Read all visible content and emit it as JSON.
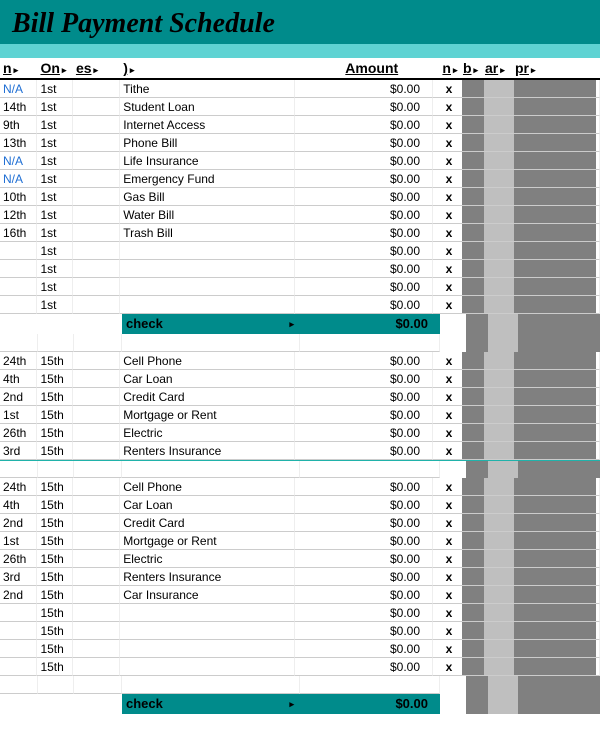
{
  "title": "Bill Payment Schedule",
  "headers": {
    "n": "n",
    "on": "On",
    "es": "es",
    "paren": ")",
    "amount": "Amount",
    "n2": "n",
    "b": "b",
    "ar": "ar",
    "pr": "pr"
  },
  "colors": {
    "title_bg": "#008b8b",
    "sub_bg": "#5fd3d3",
    "check_bg": "#008b8b",
    "side_dark": "#808080",
    "side_light": "#bfbfbf",
    "na_color": "#1f6fd4"
  },
  "section1": [
    {
      "n": "N/A",
      "na": true,
      "on": "1st",
      "desc": "Tithe",
      "amt": "$0.00",
      "x": "x"
    },
    {
      "n": "14th",
      "on": "1st",
      "desc": "Student Loan",
      "amt": "$0.00",
      "x": "x"
    },
    {
      "n": "9th",
      "on": "1st",
      "desc": "Internet Access",
      "amt": "$0.00",
      "x": "x"
    },
    {
      "n": "13th",
      "on": "1st",
      "desc": "Phone Bill",
      "amt": "$0.00",
      "x": "x"
    },
    {
      "n": "N/A",
      "na": true,
      "on": "1st",
      "desc": "Life Insurance",
      "amt": "$0.00",
      "x": "x"
    },
    {
      "n": "N/A",
      "na": true,
      "on": "1st",
      "desc": "Emergency Fund",
      "amt": "$0.00",
      "x": "x"
    },
    {
      "n": "10th",
      "on": "1st",
      "desc": "Gas Bill",
      "amt": "$0.00",
      "x": "x"
    },
    {
      "n": "12th",
      "on": "1st",
      "desc": "Water Bill",
      "amt": "$0.00",
      "x": "x"
    },
    {
      "n": "16th",
      "on": "1st",
      "desc": "Trash Bill",
      "amt": "$0.00",
      "x": "x"
    },
    {
      "n": "",
      "on": "1st",
      "desc": "",
      "amt": "$0.00",
      "x": "x"
    },
    {
      "n": "",
      "on": "1st",
      "desc": "",
      "amt": "$0.00",
      "x": "x"
    },
    {
      "n": "",
      "on": "1st",
      "desc": "",
      "amt": "$0.00",
      "x": "x"
    },
    {
      "n": "",
      "on": "1st",
      "desc": "",
      "amt": "$0.00",
      "x": "x"
    }
  ],
  "check1": {
    "label": "check",
    "amt": "$0.00"
  },
  "section2": [
    {
      "n": "24th",
      "on": "15th",
      "desc": "Cell Phone",
      "amt": "$0.00",
      "x": "x"
    },
    {
      "n": "4th",
      "on": "15th",
      "desc": "Car Loan",
      "amt": "$0.00",
      "x": "x"
    },
    {
      "n": "2nd",
      "on": "15th",
      "desc": "Credit Card",
      "amt": "$0.00",
      "x": "x"
    },
    {
      "n": "1st",
      "on": "15th",
      "desc": "Mortgage or Rent",
      "amt": "$0.00",
      "x": "x"
    },
    {
      "n": "26th",
      "on": "15th",
      "desc": "Electric",
      "amt": "$0.00",
      "x": "x"
    },
    {
      "n": "3rd",
      "on": "15th",
      "desc": "Renters Insurance",
      "amt": "$0.00",
      "x": "x"
    }
  ],
  "section3": [
    {
      "n": "24th",
      "on": "15th",
      "desc": "Cell Phone",
      "amt": "$0.00",
      "x": "x"
    },
    {
      "n": "4th",
      "on": "15th",
      "desc": "Car Loan",
      "amt": "$0.00",
      "x": "x"
    },
    {
      "n": "2nd",
      "on": "15th",
      "desc": "Credit Card",
      "amt": "$0.00",
      "x": "x"
    },
    {
      "n": "1st",
      "on": "15th",
      "desc": "Mortgage or Rent",
      "amt": "$0.00",
      "x": "x"
    },
    {
      "n": "26th",
      "on": "15th",
      "desc": "Electric",
      "amt": "$0.00",
      "x": "x"
    },
    {
      "n": "3rd",
      "on": "15th",
      "desc": "Renters Insurance",
      "amt": "$0.00",
      "x": "x"
    },
    {
      "n": "2nd",
      "on": "15th",
      "desc": "Car Insurance",
      "amt": "$0.00",
      "x": "x"
    },
    {
      "n": "",
      "on": "15th",
      "desc": "",
      "amt": "$0.00",
      "x": "x"
    },
    {
      "n": "",
      "on": "15th",
      "desc": "",
      "amt": "$0.00",
      "x": "x"
    },
    {
      "n": "",
      "on": "15th",
      "desc": "",
      "amt": "$0.00",
      "x": "x"
    },
    {
      "n": "",
      "on": "15th",
      "desc": "",
      "amt": "$0.00",
      "x": "x"
    }
  ],
  "check2": {
    "label": "check",
    "amt": "$0.00"
  }
}
